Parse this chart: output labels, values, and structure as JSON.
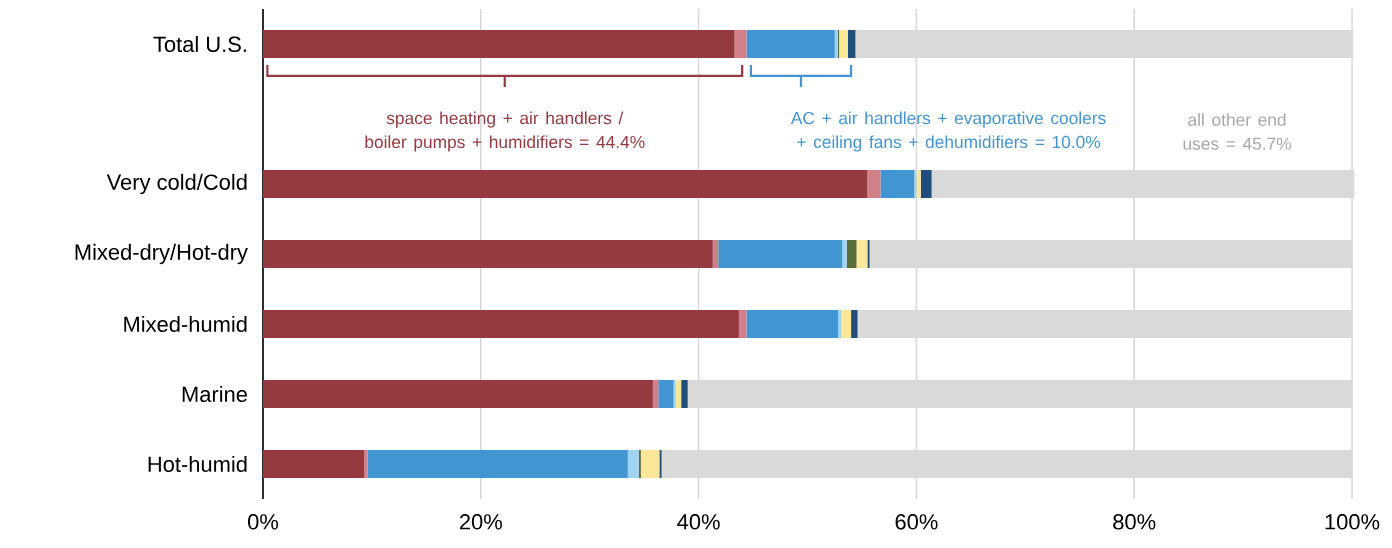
{
  "chart_data": {
    "type": "bar",
    "orientation": "horizontal",
    "stacked": true,
    "categories": [
      "Total U.S.",
      "Very cold/Cold",
      "Mixed-dry/Hot-dry",
      "Mixed-humid",
      "Marine",
      "Hot-humid"
    ],
    "series": [
      {
        "color": "#953a40",
        "values": [
          43.3,
          55.5,
          41.3,
          43.7,
          35.8,
          9.3
        ]
      },
      {
        "color": "#d08088",
        "values": [
          1.1,
          1.2,
          0.5,
          0.7,
          0.5,
          0.3
        ]
      },
      {
        "color": "#4295d1",
        "values": [
          8.1,
          3.1,
          11.4,
          8.4,
          1.4,
          23.9
        ]
      },
      {
        "color": "#9fd3f2",
        "values": [
          0.3,
          0.2,
          0.4,
          0.3,
          0.2,
          1.0
        ]
      },
      {
        "color": "#5a6e3a",
        "values": [
          0.1,
          0,
          0.9,
          0,
          0,
          0.2
        ]
      },
      {
        "color": "#fbe69a",
        "values": [
          0.8,
          0.4,
          1.0,
          0.9,
          0.5,
          1.7
        ]
      },
      {
        "color": "#1f4e79",
        "values": [
          0.7,
          1.0,
          0.2,
          0.6,
          0.6,
          0.2
        ]
      },
      {
        "color": "#d9d9d9",
        "values": [
          45.7,
          38.8,
          44.3,
          45.4,
          61.0,
          63.4
        ]
      }
    ],
    "xlim": [
      0,
      100
    ],
    "xticks": [
      {
        "value": 0,
        "label": "0%"
      },
      {
        "value": 20,
        "label": "20%"
      },
      {
        "value": 40,
        "label": "40%"
      },
      {
        "value": 60,
        "label": "60%"
      },
      {
        "value": 80,
        "label": "80%"
      },
      {
        "value": 100,
        "label": "100%"
      }
    ],
    "grid": "x",
    "annotations": [
      "space heating + air handlers / boiler pumps + humidifiers = 44.4%",
      "AC + air handlers + evaporative coolers + ceiling fans + dehumidifiers = 10.0%",
      "all other end uses = 45.7%"
    ]
  }
}
